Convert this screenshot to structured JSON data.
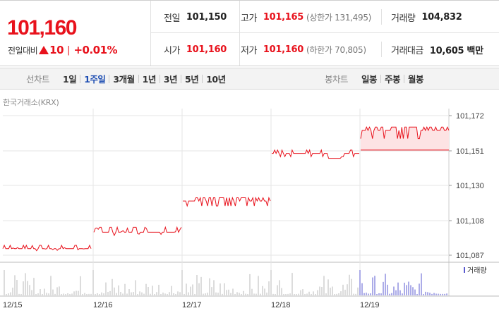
{
  "quote": {
    "price": "101,160",
    "change_label": "전일대비",
    "change_icon": "up-triangle-icon",
    "change_value": "10",
    "change_sep": "|",
    "change_rate": "+0.01%",
    "rows": [
      [
        {
          "label": "전일",
          "value": "101,150",
          "style": "plain",
          "sub": ""
        },
        {
          "label": "고가",
          "value": "101,165",
          "style": "red",
          "sub": "(상한가 131,495)"
        },
        {
          "label": "거래량",
          "value": "104,832",
          "style": "plain",
          "sub": ""
        }
      ],
      [
        {
          "label": "시가",
          "value": "101,160",
          "style": "red",
          "sub": ""
        },
        {
          "label": "저가",
          "value": "101,160",
          "style": "red",
          "sub": "(하한가 70,805)"
        },
        {
          "label": "거래대금",
          "value": "10,605 백만",
          "style": "plain",
          "sub": ""
        }
      ]
    ]
  },
  "toolbar": {
    "line_title": "선차트",
    "line_periods": [
      "1일",
      "1주일",
      "3개월",
      "1년",
      "3년",
      "5년",
      "10년"
    ],
    "active_period": "1주일",
    "candle_title": "봉차트",
    "candle_periods": [
      "일봉",
      "주봉",
      "월봉"
    ]
  },
  "chart": {
    "source": "한국거래소(KRX)",
    "volume_legend": "거래량",
    "colors": {
      "line": "#e8121c",
      "fill": "#fde3e4",
      "volume": "#b8b8b8",
      "volume_last": "#5a5ad0",
      "grid": "#e5e5e5"
    }
  },
  "chart_data": {
    "type": "line",
    "y_ticks": [
      "101,172",
      "101,151",
      "101,130",
      "101,108",
      "101,087"
    ],
    "ylim": [
      101087,
      101172
    ],
    "x_ticks": [
      "12/15",
      "12/16",
      "12/17",
      "12/18",
      "12/19"
    ],
    "series": [
      {
        "day": "12/15",
        "range": [
          101089,
          101093
        ],
        "level": 101091
      },
      {
        "day": "12/16",
        "range": [
          101099,
          101104
        ],
        "level": 101101
      },
      {
        "day": "12/17",
        "range": [
          101117,
          101123
        ],
        "level": 101120
      },
      {
        "day": "12/18",
        "range": [
          101146,
          101151
        ],
        "level": 101148
      },
      {
        "day": "12/19",
        "range": [
          101158,
          101165
        ],
        "level": 101162
      }
    ],
    "reference_level": 101151,
    "volume_series": "거래량"
  }
}
